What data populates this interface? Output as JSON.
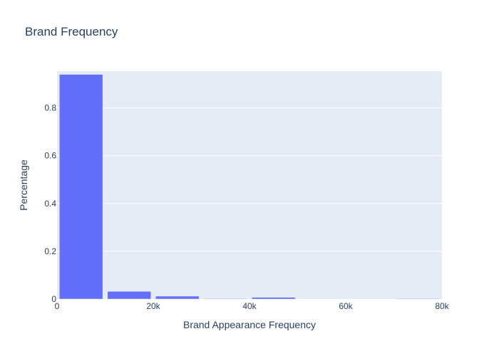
{
  "chart_data": {
    "type": "bar",
    "title": "Brand Frequency",
    "xlabel": "Brand Appearance Frequency",
    "ylabel": "Percentage",
    "xlim": [
      0,
      80000
    ],
    "ylim": [
      0,
      0.9535
    ],
    "x_ticks": [
      {
        "value": 0,
        "label": "0"
      },
      {
        "value": 20000,
        "label": "20k"
      },
      {
        "value": 40000,
        "label": "40k"
      },
      {
        "value": 60000,
        "label": "60k"
      },
      {
        "value": 80000,
        "label": "80k"
      }
    ],
    "y_ticks": [
      {
        "value": 0,
        "label": "0"
      },
      {
        "value": 0.2,
        "label": "0.2"
      },
      {
        "value": 0.4,
        "label": "0.4"
      },
      {
        "value": 0.6,
        "label": "0.6"
      },
      {
        "value": 0.8,
        "label": "0.8"
      }
    ],
    "bin_size": 10000,
    "bins": [
      {
        "start": 0,
        "end": 10000,
        "value": 0.94
      },
      {
        "start": 10000,
        "end": 20000,
        "value": 0.032
      },
      {
        "start": 20000,
        "end": 30000,
        "value": 0.012
      },
      {
        "start": 30000,
        "end": 40000,
        "value": 0.002
      },
      {
        "start": 40000,
        "end": 50000,
        "value": 0.007
      },
      {
        "start": 50000,
        "end": 60000,
        "value": 0
      },
      {
        "start": 60000,
        "end": 70000,
        "value": 0
      },
      {
        "start": 70000,
        "end": 80000,
        "value": 0.002
      }
    ],
    "colors": {
      "bar": "#636efa",
      "plot_bg": "#e5ecf6",
      "grid": "#ffffff",
      "text": "#2a3f5f"
    },
    "grid": true
  }
}
